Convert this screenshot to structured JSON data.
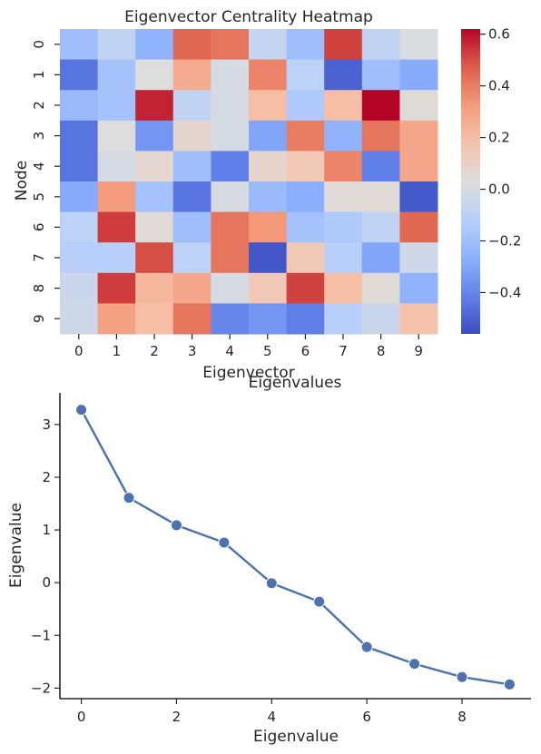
{
  "chart_data": [
    {
      "type": "heatmap",
      "title": "Eigenvector Centrality Heatmap",
      "xlabel": "Eigenvector",
      "ylabel": "Node",
      "x_categories": [
        "0",
        "1",
        "2",
        "3",
        "4",
        "5",
        "6",
        "7",
        "8",
        "9"
      ],
      "y_categories": [
        "0",
        "1",
        "2",
        "3",
        "4",
        "5",
        "6",
        "7",
        "8",
        "9"
      ],
      "values": [
        [
          -0.2,
          -0.08,
          -0.25,
          0.45,
          0.42,
          -0.07,
          -0.2,
          0.52,
          -0.08,
          0.02
        ],
        [
          -0.45,
          -0.18,
          0.03,
          0.27,
          0.0,
          0.38,
          -0.1,
          -0.5,
          -0.2,
          -0.28
        ],
        [
          -0.22,
          -0.18,
          0.57,
          -0.08,
          0.0,
          0.2,
          -0.15,
          0.2,
          0.62,
          0.05
        ],
        [
          -0.45,
          0.03,
          -0.35,
          0.08,
          0.0,
          -0.3,
          0.4,
          -0.25,
          0.42,
          0.28
        ],
        [
          -0.45,
          0.0,
          0.07,
          -0.2,
          -0.42,
          0.08,
          0.15,
          0.38,
          -0.42,
          0.28
        ],
        [
          -0.28,
          0.32,
          -0.18,
          -0.45,
          0.0,
          -0.22,
          -0.27,
          0.05,
          0.05,
          -0.52
        ],
        [
          -0.1,
          0.53,
          0.05,
          -0.2,
          0.42,
          0.33,
          -0.18,
          -0.15,
          -0.08,
          0.45
        ],
        [
          -0.12,
          -0.12,
          0.5,
          -0.1,
          0.42,
          -0.53,
          0.15,
          -0.12,
          -0.3,
          -0.03
        ],
        [
          -0.05,
          0.53,
          0.22,
          0.28,
          0.0,
          0.15,
          0.52,
          0.2,
          0.05,
          -0.25
        ],
        [
          -0.03,
          0.3,
          0.2,
          0.42,
          -0.4,
          -0.35,
          -0.42,
          -0.12,
          -0.05,
          0.18
        ]
      ],
      "vmin": -0.56,
      "vmax": 0.62,
      "colormap": "coolwarm",
      "colorbar_ticks": [
        -0.4,
        -0.2,
        0.0,
        0.2,
        0.4,
        0.6
      ],
      "colorbar_tick_labels": [
        "−0.4",
        "−0.2",
        "0.0",
        "0.2",
        "0.4",
        "0.6"
      ]
    },
    {
      "type": "line",
      "title": "Eigenvalues",
      "xlabel": "Eigenvalue",
      "ylabel": "Eigenvalue",
      "x": [
        0,
        1,
        2,
        3,
        4,
        5,
        6,
        7,
        8,
        9
      ],
      "y": [
        3.28,
        1.61,
        1.09,
        0.76,
        -0.01,
        -0.36,
        -1.22,
        -1.54,
        -1.79,
        -1.93
      ],
      "xlim": [
        -0.45,
        9.45
      ],
      "ylim": [
        -2.2,
        3.6
      ],
      "x_ticks": [
        0,
        2,
        4,
        6,
        8
      ],
      "x_tick_labels": [
        "0",
        "2",
        "4",
        "6",
        "8"
      ],
      "y_ticks": [
        -2,
        -1,
        0,
        1,
        2,
        3
      ],
      "y_tick_labels": [
        "−2",
        "−1",
        "0",
        "1",
        "2",
        "3"
      ],
      "line_color": "#4c72b0",
      "marker": "circle",
      "grid": false
    }
  ]
}
